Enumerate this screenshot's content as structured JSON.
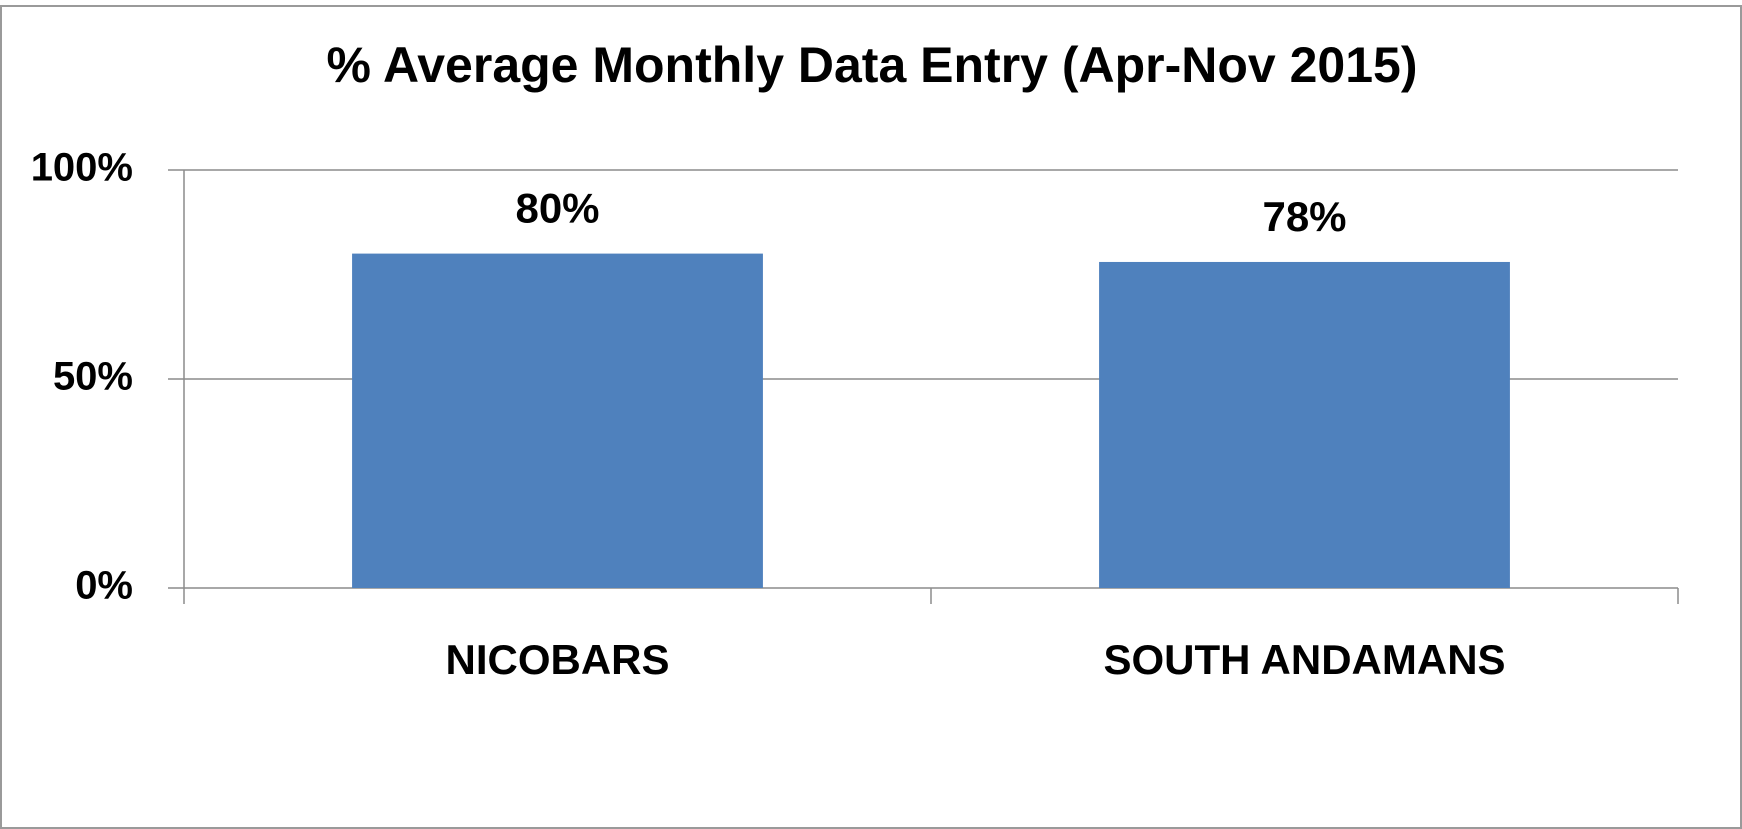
{
  "chart_data": {
    "type": "bar",
    "title": "% Average Monthly Data Entry (Apr-Nov 2015)",
    "categories": [
      "NICOBARS",
      "SOUTH ANDAMANS"
    ],
    "values": [
      80,
      78
    ],
    "value_labels": [
      "80%",
      "78%"
    ],
    "color": "#4f81bd",
    "ylim": [
      0,
      100
    ],
    "yticks": [
      {
        "value": 0,
        "label": "0%"
      },
      {
        "value": 50,
        "label": "50%"
      },
      {
        "value": 100,
        "label": "100%"
      }
    ],
    "grid": true
  }
}
